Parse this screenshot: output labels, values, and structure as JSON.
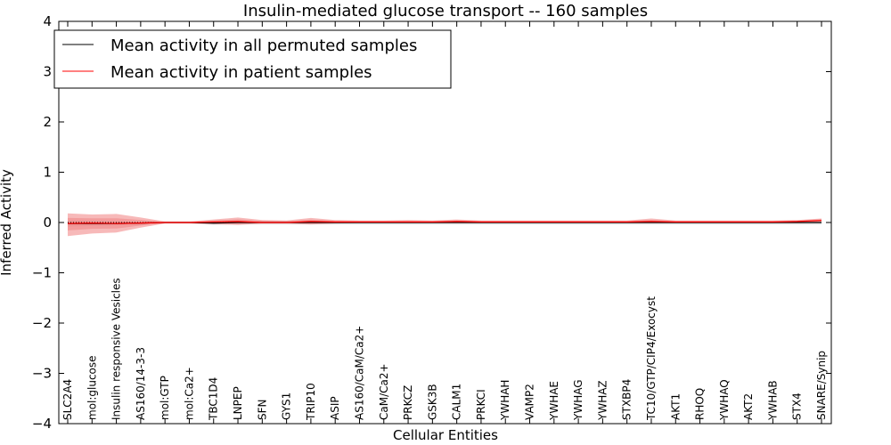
{
  "chart_data": {
    "type": "line",
    "title": "Insulin-mediated glucose transport -- 160 samples",
    "xlabel": "Cellular Entities",
    "ylabel": "Inferred Activity",
    "ylim": [
      -4,
      4
    ],
    "yticks": [
      -4,
      -3,
      -2,
      -1,
      0,
      1,
      2,
      3,
      4
    ],
    "ytick_labels": [
      "−4",
      "−3",
      "−2",
      "−1",
      "0",
      "1",
      "2",
      "3",
      "4"
    ],
    "grid": false,
    "legend_position": "top-left",
    "categories": [
      "SLC2A4",
      "mol:glucose",
      "Insulin responsive Vesicles",
      "AS160/14-3-3",
      "mol:GTP",
      "mol:Ca2+",
      "TBC1D4",
      "LNPEP",
      "SFN",
      "GYS1",
      "TRIP10",
      "ASIP",
      "AS160/CaM/Ca2+",
      "CaM/Ca2+",
      "PRKCZ",
      "GSK3B",
      "CALM1",
      "PRKCI",
      "YWHAH",
      "VAMP2",
      "YWHAE",
      "YWHAG",
      "YWHAZ",
      "STXBP4",
      "TC10/GTP/CIP4/Exocyst",
      "AKT1",
      "RHOQ",
      "YWHAQ",
      "AKT2",
      "YWHAB",
      "STX4",
      "SNARE/Synip"
    ],
    "series": [
      {
        "name": "Mean activity in all permuted samples",
        "color": "#000000",
        "values": [
          -0.02,
          -0.02,
          -0.02,
          -0.01,
          0.0,
          0.0,
          -0.01,
          0.0,
          0.0,
          0.0,
          0.0,
          0.0,
          0.0,
          0.0,
          0.0,
          0.0,
          0.0,
          0.0,
          0.0,
          0.0,
          0.0,
          0.0,
          0.0,
          0.0,
          0.0,
          0.0,
          0.0,
          0.0,
          0.0,
          0.0,
          0.0,
          0.0
        ],
        "band_low": [
          -0.08,
          -0.07,
          -0.06,
          -0.04,
          -0.02,
          -0.02,
          -0.05,
          -0.04,
          -0.04,
          -0.04,
          -0.04,
          -0.04,
          -0.04,
          -0.04,
          -0.04,
          -0.04,
          -0.04,
          -0.04,
          -0.04,
          -0.04,
          -0.04,
          -0.04,
          -0.04,
          -0.04,
          -0.04,
          -0.04,
          -0.04,
          -0.04,
          -0.04,
          -0.04,
          -0.04,
          -0.04
        ],
        "band_high": [
          0.04,
          0.03,
          0.02,
          0.02,
          0.02,
          0.02,
          0.03,
          0.03,
          0.03,
          0.03,
          0.03,
          0.03,
          0.03,
          0.03,
          0.03,
          0.03,
          0.03,
          0.03,
          0.03,
          0.03,
          0.03,
          0.03,
          0.03,
          0.03,
          0.03,
          0.03,
          0.03,
          0.03,
          0.03,
          0.03,
          0.03,
          0.03
        ]
      },
      {
        "name": "Mean activity in patient samples",
        "color": "#ff0000",
        "values": [
          -0.02,
          -0.01,
          -0.02,
          -0.01,
          0.0,
          0.0,
          0.01,
          0.02,
          0.0,
          0.0,
          0.02,
          0.01,
          0.01,
          0.01,
          0.01,
          0.01,
          0.02,
          0.01,
          0.01,
          0.01,
          0.01,
          0.01,
          0.01,
          0.01,
          0.02,
          0.01,
          0.01,
          0.01,
          0.01,
          0.01,
          0.02,
          0.04
        ],
        "band_low": [
          -0.27,
          -0.22,
          -0.2,
          -0.1,
          -0.02,
          -0.02,
          -0.03,
          -0.05,
          -0.02,
          -0.02,
          -0.04,
          -0.02,
          -0.01,
          -0.01,
          -0.01,
          -0.01,
          -0.01,
          -0.01,
          -0.01,
          -0.01,
          -0.01,
          -0.01,
          -0.01,
          -0.01,
          -0.01,
          -0.01,
          -0.01,
          -0.01,
          -0.01,
          -0.01,
          0.0,
          0.01
        ],
        "band_high": [
          0.18,
          0.16,
          0.17,
          0.1,
          0.02,
          0.02,
          0.06,
          0.1,
          0.05,
          0.04,
          0.09,
          0.05,
          0.04,
          0.04,
          0.05,
          0.04,
          0.06,
          0.04,
          0.04,
          0.04,
          0.04,
          0.04,
          0.04,
          0.04,
          0.08,
          0.04,
          0.04,
          0.04,
          0.04,
          0.04,
          0.05,
          0.08
        ]
      }
    ],
    "band_colors": {
      "permuted": "#c8c8c8",
      "patient": "#f08080",
      "patient_inner": "#f4a0a0"
    },
    "reference_line": {
      "y": 0,
      "color": "#000000",
      "style": "dotted"
    }
  }
}
